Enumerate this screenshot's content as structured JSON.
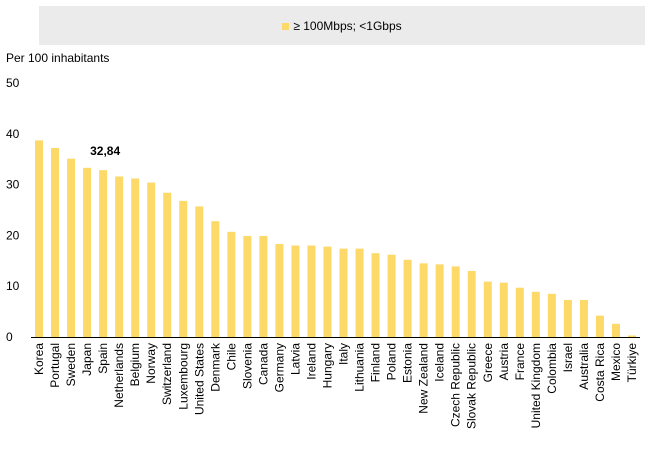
{
  "chart_data": {
    "type": "bar",
    "ylabel": "Per 100 inhabitants",
    "ylim": [
      0,
      50
    ],
    "yticks": [
      "0",
      "10",
      "20",
      "30",
      "40",
      "50"
    ],
    "legend": {
      "placement": "top",
      "entries": [
        "≥ 100Mbps; <1Gbps"
      ]
    },
    "series": [
      {
        "name": "≥ 100Mbps; <1Gbps",
        "color": "#fdd96a"
      }
    ],
    "categories": [
      "Korea",
      "Portugal",
      "Sweden",
      "Japan",
      "Spain",
      "Netherlands",
      "Belgium",
      "Norway",
      "Switzerland",
      "Luxembourg",
      "United States",
      "Denmark",
      "Chile",
      "Slovenia",
      "Canada",
      "Germany",
      "Latvia",
      "Ireland",
      "Hungary",
      "Italy",
      "Lithuania",
      "Finland",
      "Poland",
      "Estonia",
      "New Zealand",
      "Iceland",
      "Czech Republic",
      "Slovak Republic",
      "Greece",
      "Austria",
      "France",
      "United Kingdom",
      "Colombia",
      "Israel",
      "Australia",
      "Costa Rica",
      "Mexico",
      "Türkiye"
    ],
    "values": [
      38.7,
      37.2,
      35.1,
      33.3,
      32.84,
      31.6,
      31.2,
      30.4,
      28.4,
      26.8,
      25.7,
      22.8,
      20.7,
      19.9,
      19.9,
      18.3,
      18.0,
      18.0,
      17.8,
      17.4,
      17.4,
      16.5,
      16.2,
      15.2,
      14.5,
      14.3,
      13.9,
      13.0,
      10.9,
      10.7,
      9.7,
      8.9,
      8.5,
      7.3,
      7.3,
      4.2,
      2.6,
      0.3
    ],
    "annotation": {
      "label": "32,84",
      "category": "Spain"
    }
  }
}
